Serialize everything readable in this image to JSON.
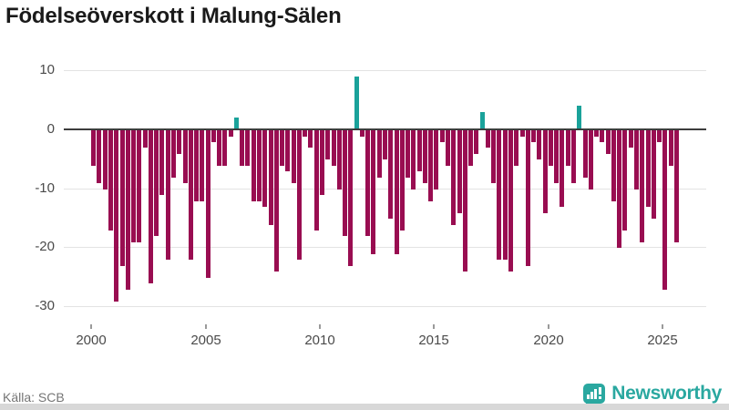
{
  "title": "Födelseöverskott i Malung-Sälen",
  "footer": {
    "source": "Källa: SCB",
    "brand": "Newsworthy"
  },
  "colors": {
    "negative_bar": "#990d51",
    "positive_bar": "#1aa29a",
    "brand_teal": "#2aa8a0"
  },
  "chart_data": {
    "type": "bar",
    "title": "Födelseöverskott i Malung-Sälen",
    "frequency": "quarterly",
    "start_year": 2000,
    "start_quarter": 1,
    "x_ticks": [
      2000,
      2005,
      2010,
      2015,
      2020,
      2025
    ],
    "y_ticks": [
      10,
      0,
      -10,
      -20,
      -30
    ],
    "ylim": [
      -32,
      12
    ],
    "grid": true,
    "legend": "none",
    "values": [
      -6,
      -9,
      -10,
      -17,
      -29,
      -23,
      -27,
      -19,
      -19,
      -3,
      -26,
      -18,
      -11,
      -22,
      -8,
      -4,
      -9,
      -22,
      -12,
      -12,
      -25,
      -2,
      -6,
      -6,
      -1,
      2,
      -6,
      -6,
      -12,
      -12,
      -13,
      -16,
      -24,
      -6,
      -7,
      -9,
      -22,
      -1,
      -3,
      -17,
      -11,
      -5,
      -6,
      -10,
      -18,
      -23,
      9,
      -1,
      -18,
      -21,
      -8,
      -5,
      -15,
      -21,
      -17,
      -8,
      -10,
      -7,
      -9,
      -12,
      -10,
      -2,
      -6,
      -16,
      -14,
      -24,
      -6,
      -4,
      3,
      -3,
      -9,
      -22,
      -22,
      -24,
      -6,
      -1,
      -23,
      -2,
      -5,
      -14,
      -6,
      -9,
      -13,
      -6,
      -9,
      4,
      -8,
      -10,
      -1,
      -2,
      -4,
      -12,
      -20,
      -17,
      -3,
      -10,
      -19,
      -13,
      -15,
      -2,
      -27,
      -6,
      -19
    ]
  }
}
